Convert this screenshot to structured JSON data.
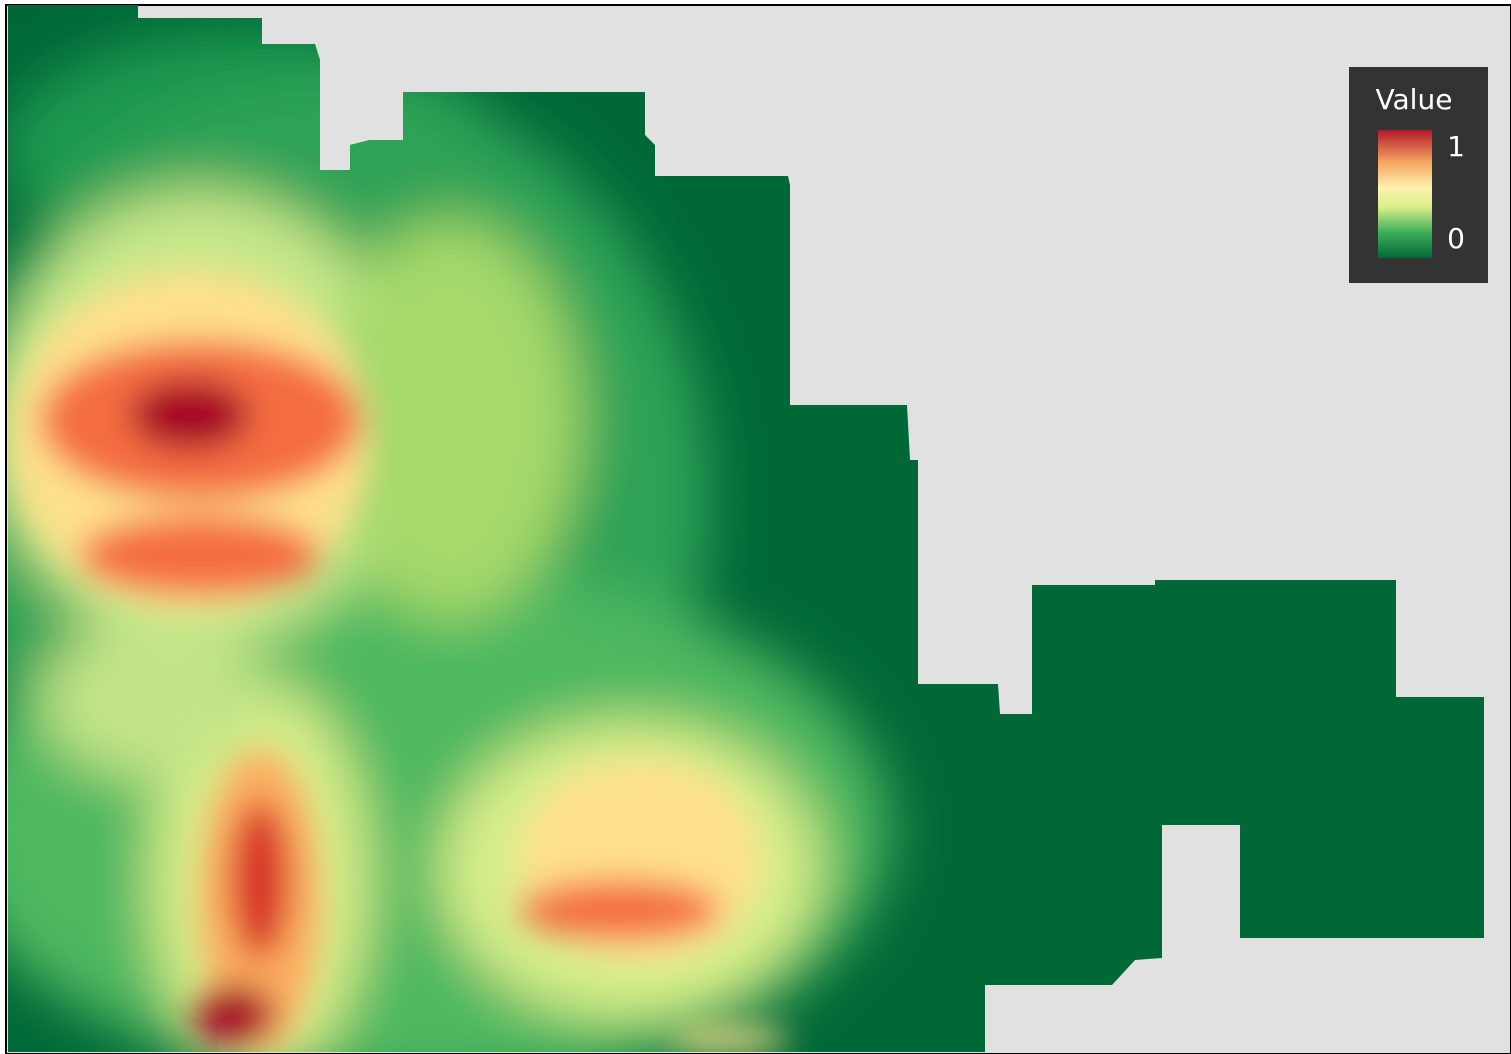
{
  "legend": {
    "title": "Value",
    "max": 1,
    "min": 0
  }
}
